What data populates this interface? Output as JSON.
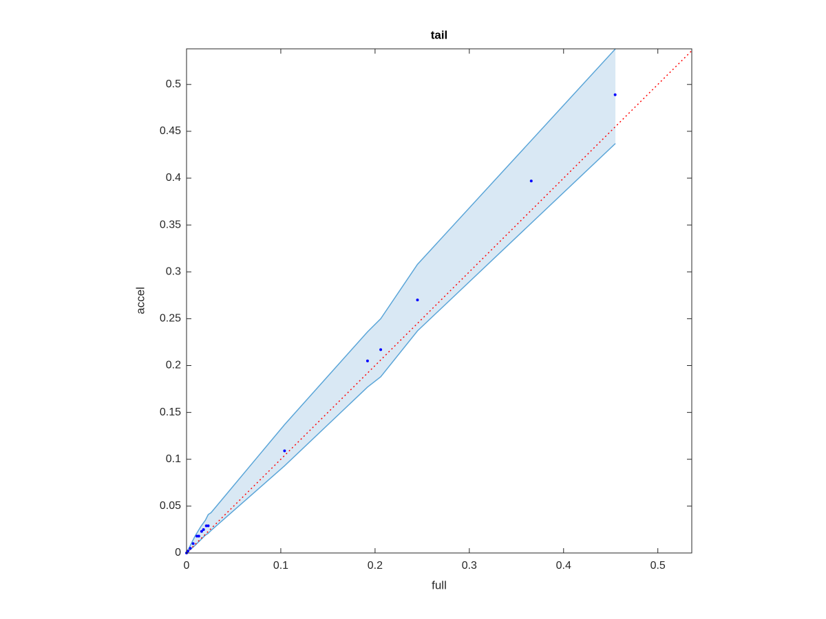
{
  "chart_data": {
    "type": "scatter",
    "title": "tail",
    "x_label": "full",
    "y_label": "accel",
    "xlim": [
      0,
      0.536
    ],
    "ylim": [
      0,
      0.538
    ],
    "xticks": [
      0,
      0.1,
      0.2,
      0.3,
      0.4,
      0.5
    ],
    "yticks": [
      0,
      0.05,
      0.1,
      0.15,
      0.2,
      0.25,
      0.3,
      0.35,
      0.4,
      0.45,
      0.5
    ],
    "points": {
      "color": "#0000ff",
      "x": [
        0,
        0.0015,
        0.004,
        0.007,
        0.011,
        0.013,
        0.016,
        0.018,
        0.021,
        0.023,
        0.104,
        0.192,
        0.206,
        0.245,
        0.3657,
        0.4547
      ],
      "values": [
        0,
        0.002,
        0.005,
        0.01,
        0.018,
        0.018,
        0.023,
        0.025,
        0.029,
        0.029,
        0.109,
        0.205,
        0.217,
        0.27,
        0.397,
        0.489
      ]
    },
    "band": {
      "color": "#5aa5d8",
      "fill": "#d9e8f4",
      "x": [
        0,
        0.009,
        0.015,
        0.02,
        0.023,
        0.026,
        0.104,
        0.192,
        0.206,
        0.245,
        0.455
      ],
      "upper": [
        0,
        0.018,
        0.028,
        0.035,
        0.041,
        0.043,
        0.137,
        0.236,
        0.25,
        0.308,
        0.538
      ],
      "lower": [
        0,
        0.008,
        0.014,
        0.019,
        0.021,
        0.024,
        0.093,
        0.177,
        0.188,
        0.237,
        0.437
      ]
    },
    "reference_line": {
      "color": "#ff0000",
      "x": [
        0,
        0.536
      ],
      "values": [
        0,
        0.536
      ]
    }
  }
}
